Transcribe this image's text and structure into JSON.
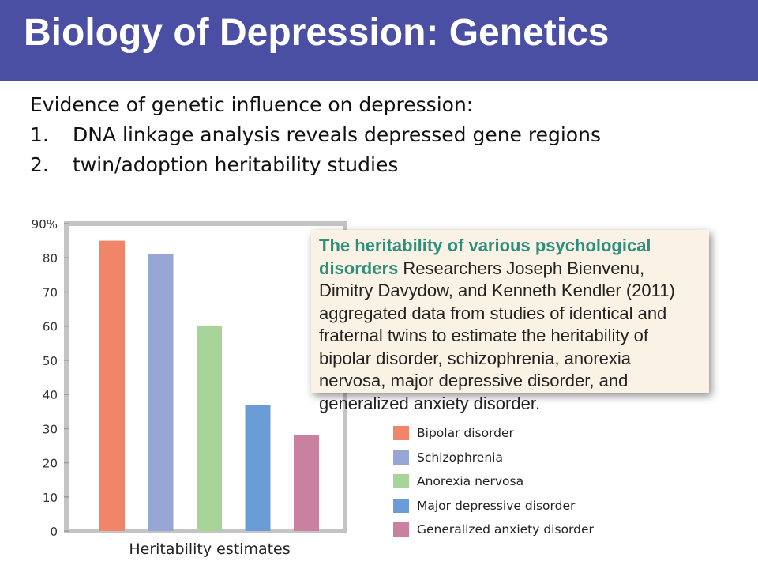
{
  "header": {
    "title": "Biology of Depression: Genetics"
  },
  "intro": {
    "lead": "Evidence of genetic influence on depression:",
    "items": [
      {
        "num": "1.",
        "text": "DNA linkage analysis reveals depressed gene regions"
      },
      {
        "num": "2.",
        "text": "twin/adoption heritability studies"
      }
    ]
  },
  "callout": {
    "lead": "The heritability of various psychological disorders",
    "body": " Researchers Joseph Bienvenu, Dimitry Davydow, and Kenneth Kendler (2011) aggregated data from studies of identical and fraternal twins to estimate the heritability of bipolar disorder, schizophrenia, anorexia nervosa, major depressive disorder, and generalized anxiety disorder."
  },
  "chart_data": {
    "type": "bar",
    "title": "",
    "xlabel": "Heritability estimates",
    "ylabel": "",
    "ylim": [
      0,
      90
    ],
    "y_ticks": [
      "0",
      "10",
      "20",
      "30",
      "40",
      "50",
      "60",
      "70",
      "80",
      "90%"
    ],
    "grid": false,
    "legend_position": "bottom-right",
    "categories": [
      "Bipolar disorder",
      "Schizophrenia",
      "Anorexia nervosa",
      "Major depressive disorder",
      "Generalized anxiety disorder"
    ],
    "values": [
      85,
      81,
      60,
      37,
      28
    ],
    "colors": [
      "#f0856a",
      "#97a6d5",
      "#a8d49a",
      "#6a9dd6",
      "#c9819f"
    ]
  }
}
